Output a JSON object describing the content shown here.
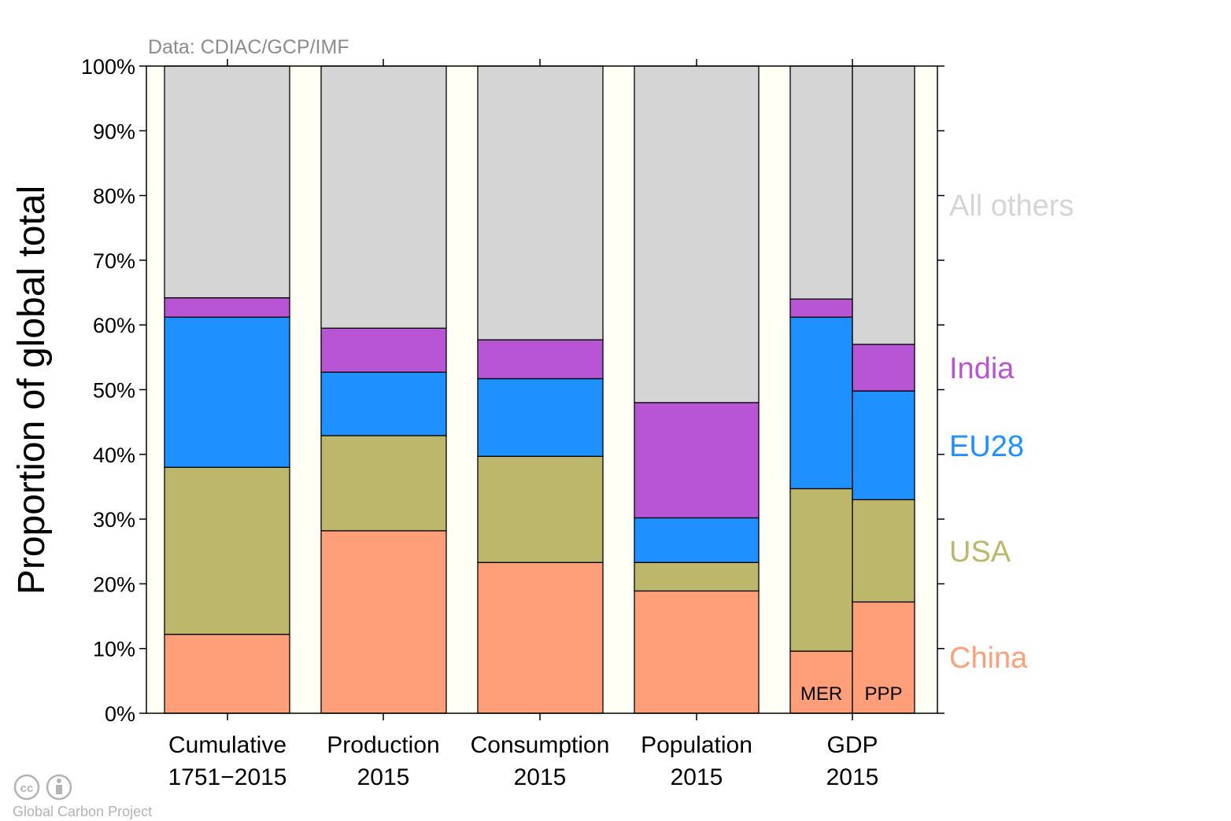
{
  "chart_data": {
    "type": "bar",
    "stacked": true,
    "source_note": "Data: CDIAC/GCP/IMF",
    "ylabel": "Proportion of global total",
    "ylim": [
      0,
      100
    ],
    "yticks": [
      "0%",
      "10%",
      "20%",
      "30%",
      "40%",
      "50%",
      "60%",
      "70%",
      "80%",
      "90%",
      "100%"
    ],
    "categories": [
      {
        "line1": "Cumulative",
        "line2": "1751−2015"
      },
      {
        "line1": "Production",
        "line2": "2015"
      },
      {
        "line1": "Consumption",
        "line2": "2015"
      },
      {
        "line1": "Population",
        "line2": "2015"
      },
      {
        "line1": "GDP",
        "line2": "2015"
      }
    ],
    "bars": [
      {
        "category": 0,
        "sub_label": "",
        "values": [
          12.2,
          25.8,
          23.2,
          3.0,
          35.8
        ]
      },
      {
        "category": 1,
        "sub_label": "",
        "values": [
          28.2,
          14.7,
          9.8,
          6.8,
          40.5
        ]
      },
      {
        "category": 2,
        "sub_label": "",
        "values": [
          23.3,
          16.4,
          12.0,
          6.0,
          42.3
        ]
      },
      {
        "category": 3,
        "sub_label": "",
        "values": [
          18.9,
          4.4,
          6.9,
          17.8,
          52.0
        ]
      },
      {
        "category": 4,
        "sub_label": "MER",
        "values": [
          9.6,
          25.1,
          26.5,
          2.8,
          36.0
        ]
      },
      {
        "category": 4,
        "sub_label": "PPP",
        "values": [
          17.2,
          15.8,
          16.8,
          7.2,
          43.0
        ]
      }
    ],
    "series": [
      {
        "name": "China",
        "color": "#ff9f79"
      },
      {
        "name": "USA",
        "color": "#bdb76b"
      },
      {
        "name": "EU28",
        "color": "#1e90ff"
      },
      {
        "name": "India",
        "color": "#b855d4"
      },
      {
        "name": "All others",
        "color": "#d5d5d5"
      }
    ],
    "legend_placement": "right",
    "background_color": "#fffff5",
    "credit": "Global Carbon Project"
  }
}
